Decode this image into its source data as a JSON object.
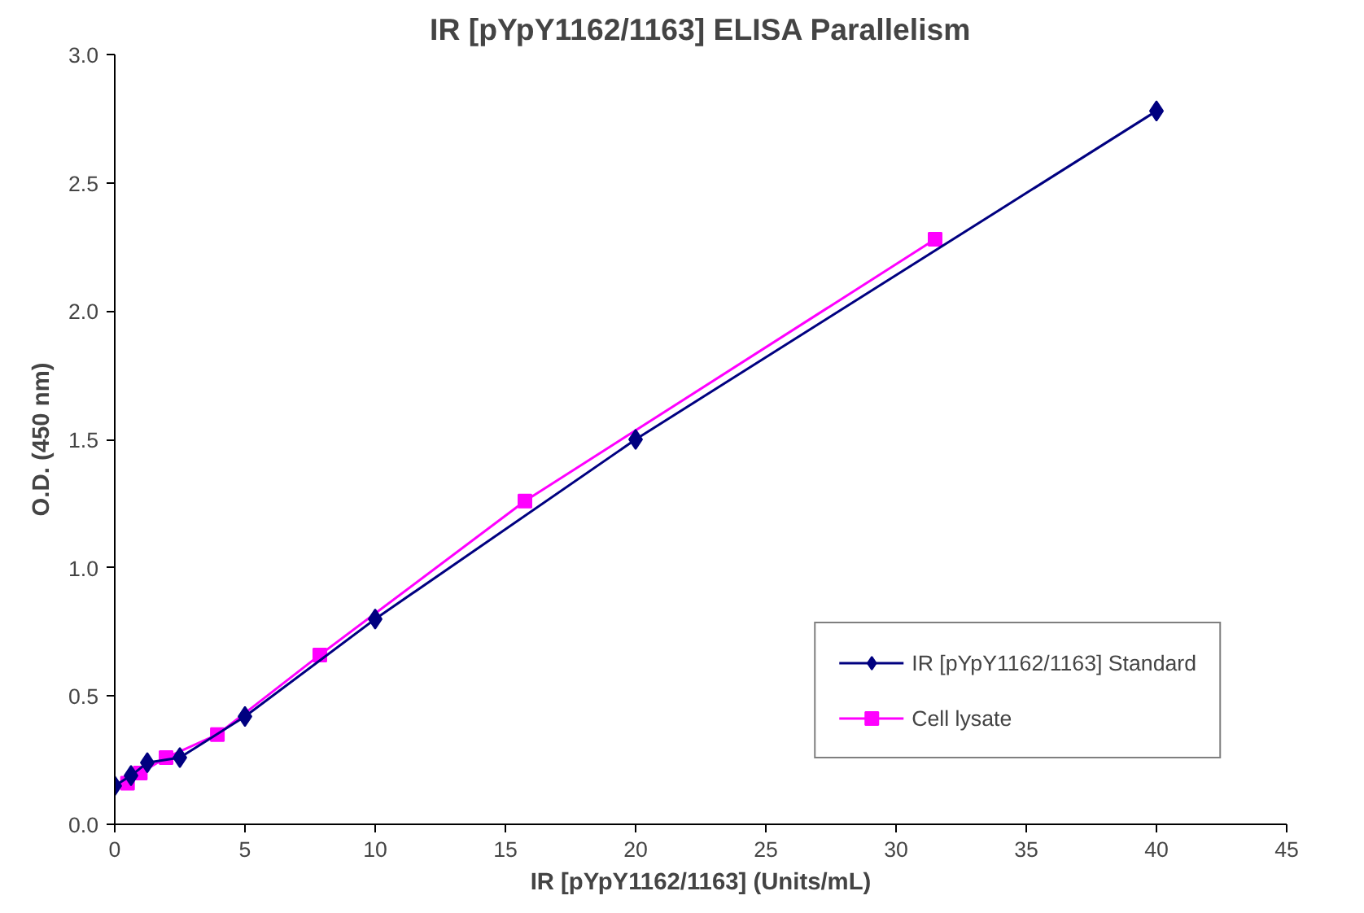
{
  "chart_data": {
    "type": "line",
    "title": "IR [pYpY1162/1163] ELISA Parallelism",
    "xlabel": "IR [pYpY1162/1163] (Units/mL)",
    "ylabel": "O.D. (450 nm)",
    "xlim": [
      0,
      45
    ],
    "xticks": [
      0,
      5,
      10,
      15,
      20,
      25,
      30,
      35,
      40,
      45
    ],
    "ylim": [
      0,
      3
    ],
    "yticks": [
      {
        "value": 0,
        "label": "0.0"
      },
      {
        "value": 0.5,
        "label": "0.5"
      },
      {
        "value": 1,
        "label": "1.0"
      },
      {
        "value": 1.5,
        "label": "1.5"
      },
      {
        "value": 2,
        "label": "2.0"
      },
      {
        "value": 2.5,
        "label": "2.5"
      },
      {
        "value": 3,
        "label": "3.0"
      }
    ],
    "grid": false,
    "legend": "bottom right",
    "line_style": "solid",
    "series": [
      {
        "name": "IR [pYpY1162/1163] Standard",
        "color": "#000080",
        "marker": "diamond",
        "x": [
          0,
          0.625,
          1.25,
          2.5,
          5,
          10,
          20,
          40
        ],
        "values": [
          0.15,
          0.19,
          0.24,
          0.26,
          0.42,
          0.8,
          1.5,
          2.78
        ]
      },
      {
        "name": "Cell lysate",
        "color": "#ff00ff",
        "marker": "square",
        "x": [
          0.49,
          0.98,
          1.97,
          3.94,
          7.875,
          15.75,
          31.5
        ],
        "values": [
          0.16,
          0.2,
          0.26,
          0.35,
          0.66,
          1.26,
          2.28
        ]
      }
    ]
  }
}
